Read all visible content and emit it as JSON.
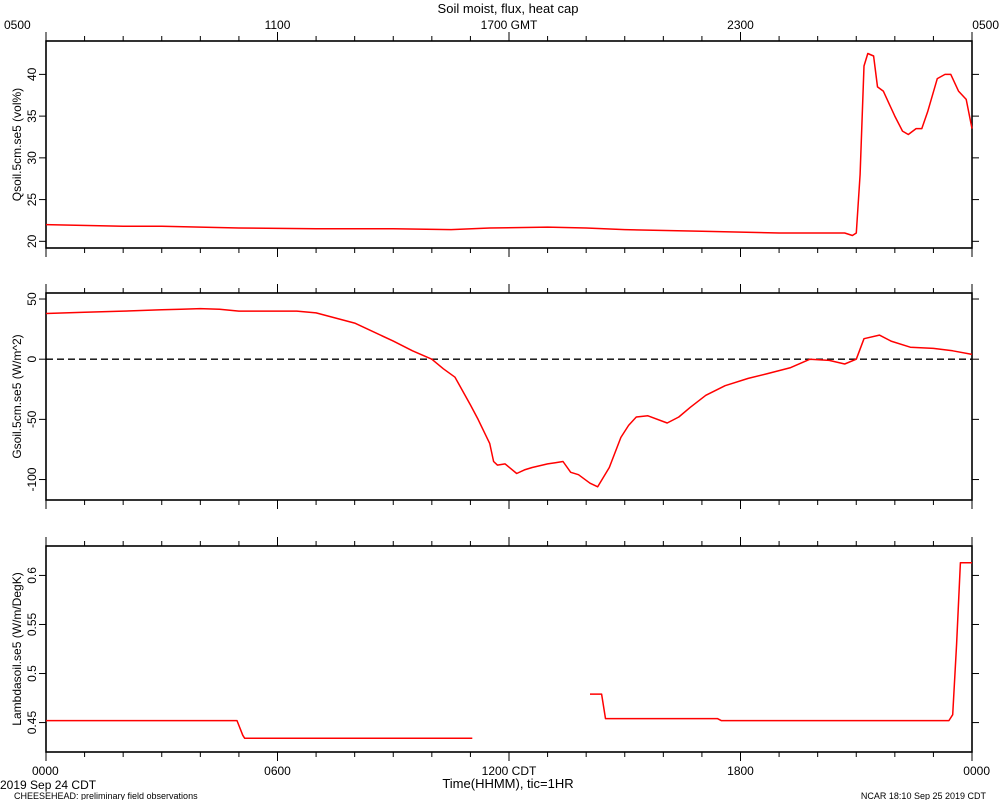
{
  "header": {
    "title": "Soil moist, flux, heat cap",
    "top_ticks": [
      "0500",
      "1100",
      "1700 GMT",
      "2300",
      "0500"
    ]
  },
  "footer": {
    "x_label": "Time(HHMM), tic=1HR",
    "date_left": "2019 Sep 24 CDT",
    "date_right": "NCAR 18:10 Sep 25 2019 CDT",
    "project": "CHEESEHEAD: preliminary field observations",
    "bottom_ticks": [
      "0000",
      "0600",
      "1200 CDT",
      "1800",
      "0000"
    ]
  },
  "colors": {
    "series": "#ff0000",
    "axis": "#000000",
    "zero_line": "#000000"
  },
  "chart_data": [
    {
      "type": "line",
      "ylabel": "Qsoil.5cm.se5 (vol%)",
      "xlim": [
        0,
        24
      ],
      "ylim": [
        19.2,
        44
      ],
      "yticks": [
        20,
        25,
        30,
        35,
        40
      ],
      "series": [
        {
          "x": [
            0,
            2,
            3,
            5,
            7,
            9,
            10.5,
            11.5,
            13,
            14,
            15,
            17,
            19,
            20.7,
            20.9,
            21.0,
            21.1,
            21.2,
            21.3,
            21.45,
            21.55,
            21.7,
            22.0,
            22.2,
            22.35,
            22.55,
            22.7,
            22.85,
            23.1,
            23.3,
            23.45,
            23.65,
            23.85,
            24
          ],
          "y": [
            22.0,
            21.8,
            21.8,
            21.6,
            21.5,
            21.5,
            21.4,
            21.6,
            21.7,
            21.6,
            21.4,
            21.2,
            21.0,
            21.0,
            20.7,
            21.0,
            28,
            41,
            42.5,
            42.2,
            38.5,
            38,
            35,
            33.2,
            32.8,
            33.5,
            33.5,
            35.5,
            39.5,
            40,
            40,
            38,
            37,
            33.5
          ]
        }
      ]
    },
    {
      "type": "line",
      "ylabel": "Gsoil.5cm.se5 (W/m^2)",
      "xlim": [
        0,
        24
      ],
      "ylim": [
        -117,
        55
      ],
      "yticks": [
        50,
        0,
        -50,
        -100
      ],
      "reference_line": {
        "y": 0,
        "style": "dashed"
      },
      "series": [
        {
          "x": [
            0,
            1,
            2,
            3,
            3.5,
            4,
            4.5,
            5,
            6,
            6.5,
            7,
            8,
            9,
            9.5,
            10,
            10.3,
            10.6,
            11,
            11.2,
            11.5,
            11.6,
            11.7,
            11.9,
            12.2,
            12.4,
            12.6,
            13,
            13.2,
            13.4,
            13.6,
            13.8,
            14.1,
            14.3,
            14.6,
            14.9,
            15.1,
            15.3,
            15.6,
            16.1,
            16.4,
            16.7,
            17.1,
            17.6,
            18.2,
            18.7,
            19.3,
            19.8,
            20.3,
            20.7,
            21.0,
            21.2,
            21.6,
            21.9,
            22.4,
            23.0,
            23.5,
            24
          ],
          "y": [
            38,
            39,
            40,
            41,
            41.5,
            42,
            41.5,
            40,
            40,
            40,
            38.5,
            30,
            15,
            7,
            0,
            -8,
            -15,
            -38,
            -50,
            -70,
            -85,
            -88,
            -87,
            -95,
            -92,
            -90,
            -87,
            -86,
            -85,
            -94,
            -96,
            -103,
            -106,
            -90,
            -65,
            -55,
            -48,
            -47,
            -53,
            -48,
            -40,
            -30,
            -22,
            -16,
            -12,
            -7,
            0,
            -1,
            -4,
            0,
            17,
            20,
            15,
            10,
            9,
            7,
            4
          ]
        }
      ]
    },
    {
      "type": "line",
      "ylabel": "Lambdasoil.se5 (W/m/DegK)",
      "xlim": [
        0,
        24
      ],
      "ylim": [
        0.42,
        0.63
      ],
      "yticks": [
        0.45,
        0.5,
        0.55,
        0.6
      ],
      "series": [
        {
          "segments": [
            {
              "x": [
                0,
                4.95,
                5.1,
                5.15,
                11.05
              ],
              "y": [
                0.452,
                0.452,
                0.437,
                0.434,
                0.434
              ]
            },
            {
              "x": [
                14.1,
                14.4,
                14.5,
                17.4,
                17.5,
                23.4,
                23.5,
                23.6,
                23.7,
                24
              ],
              "y": [
                0.479,
                0.479,
                0.454,
                0.454,
                0.452,
                0.452,
                0.458,
                0.53,
                0.613,
                0.613
              ]
            }
          ]
        }
      ]
    }
  ]
}
